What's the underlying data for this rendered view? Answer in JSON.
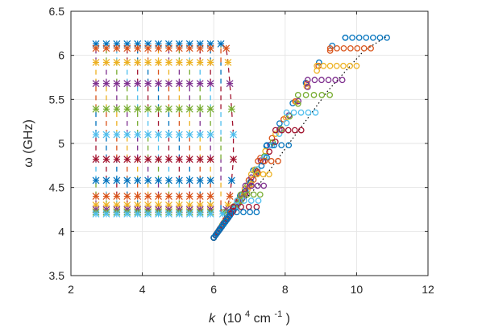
{
  "chart_data": {
    "type": "scatter",
    "title": "",
    "xlabel_italic": "k",
    "xlabel_unit_pre": "(10",
    "xlabel_unit_exp1": "4",
    "xlabel_unit_mid": " cm",
    "xlabel_unit_exp2": "-1",
    "xlabel_unit_post": ")",
    "ylabel": "ω (GHz)",
    "xlim": [
      2,
      12
    ],
    "ylim": [
      3.5,
      6.5
    ],
    "xticks": [
      2,
      4,
      6,
      8,
      10,
      12
    ],
    "yticks": [
      3.5,
      4,
      4.5,
      5,
      5.5,
      6,
      6.5
    ],
    "xtick_labels": [
      "2",
      "4",
      "6",
      "8",
      "10",
      "12"
    ],
    "ytick_labels": [
      "3.5",
      "4",
      "4.5",
      "5",
      "5.5",
      "6",
      "6.5"
    ],
    "grid": true,
    "colors": [
      "#0072BD",
      "#D95319",
      "#EDB120",
      "#7E2F8E",
      "#77AC30",
      "#4DBEEE",
      "#A2142F"
    ],
    "left_branch": {
      "marker": "x",
      "x_start": 2.7,
      "x_end": 6.2,
      "points": 13,
      "bottom_boundary": [
        [
          2.7,
          4.2
        ],
        [
          4,
          4.19
        ],
        [
          5,
          4.2
        ],
        [
          6,
          4.24
        ],
        [
          6.3,
          4.26
        ],
        [
          6.5,
          4.32
        ]
      ],
      "levels": [
        {
          "y": 6.13,
          "x_right": 6.2
        },
        {
          "y": 6.08,
          "x_right": 6.35
        },
        {
          "y": 5.92,
          "x_right": 6.4
        },
        {
          "y": 5.68,
          "x_right": 6.45
        },
        {
          "y": 5.39,
          "x_right": 6.5
        },
        {
          "y": 5.1,
          "x_right": 6.55
        },
        {
          "y": 4.82,
          "x_right": 6.55
        },
        {
          "y": 4.58,
          "x_right": 6.5
        },
        {
          "y": 4.4,
          "x_right": 6.45
        },
        {
          "y": 4.3,
          "x_right": 6.4
        },
        {
          "y": 4.25,
          "x_right": 6.35
        },
        {
          "y": 4.22,
          "x_right": 6.3
        },
        {
          "y": 4.2,
          "x_right": 6.25
        }
      ]
    },
    "right_branch": {
      "marker": "o",
      "start": [
        6.0,
        3.93
      ],
      "upper_line": [
        [
          6.0,
          3.93
        ],
        [
          6.4,
          4.18
        ],
        [
          6.8,
          4.45
        ],
        [
          7.3,
          4.85
        ],
        [
          7.8,
          5.2
        ],
        [
          8.2,
          5.45
        ],
        [
          8.6,
          5.7
        ],
        [
          9.0,
          5.95
        ],
        [
          9.4,
          6.15
        ],
        [
          9.8,
          6.22
        ],
        [
          10.9,
          6.23
        ]
      ],
      "dotted_line": [
        [
          6.0,
          3.93
        ],
        [
          6.5,
          4.2
        ],
        [
          7.3,
          4.55
        ],
        [
          8.2,
          5.05
        ],
        [
          9.2,
          5.6
        ],
        [
          10.2,
          6.05
        ],
        [
          10.9,
          6.23
        ]
      ],
      "plateau_levels": [
        {
          "y": 6.2,
          "x_end": 10.85
        },
        {
          "y": 6.08,
          "x_end": 10.4
        },
        {
          "y": 5.88,
          "x_end": 10.0
        },
        {
          "y": 5.72,
          "x_end": 9.6
        },
        {
          "y": 5.55,
          "x_end": 9.25
        },
        {
          "y": 5.35,
          "x_end": 8.85
        },
        {
          "y": 5.15,
          "x_end": 8.45
        },
        {
          "y": 4.98,
          "x_end": 8.1
        },
        {
          "y": 4.8,
          "x_end": 7.8
        },
        {
          "y": 4.65,
          "x_end": 7.55
        },
        {
          "y": 4.52,
          "x_end": 7.4
        },
        {
          "y": 4.42,
          "x_end": 7.3
        },
        {
          "y": 4.35,
          "x_end": 7.25
        },
        {
          "y": 4.28,
          "x_end": 7.2
        },
        {
          "y": 4.22,
          "x_end": 7.2
        }
      ]
    }
  }
}
